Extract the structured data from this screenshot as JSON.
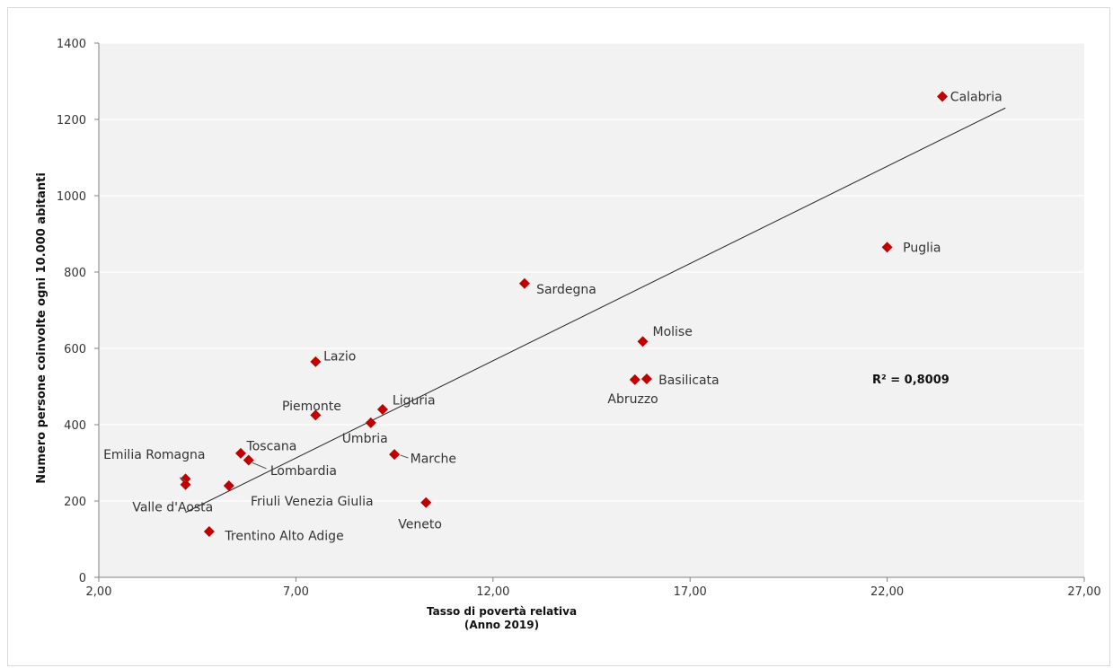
{
  "chart_data": {
    "type": "scatter",
    "xlabel_line1": "Tasso di povertà relativa",
    "xlabel_line2": "(Anno 2019)",
    "ylabel": "Numero persone coinvolte ogni 10.000 abitanti",
    "xlim": [
      2,
      27
    ],
    "ylim": [
      0,
      1400
    ],
    "x_ticks": [
      "2,00",
      "7,00",
      "12,00",
      "17,00",
      "22,00",
      "27,00"
    ],
    "x_tick_values": [
      2,
      7,
      12,
      17,
      22,
      27
    ],
    "y_ticks": [
      "0",
      "200",
      "400",
      "600",
      "800",
      "1000",
      "1200",
      "1400"
    ],
    "y_tick_values": [
      0,
      200,
      400,
      600,
      800,
      1000,
      1200,
      1400
    ],
    "grid": "horizontal",
    "marker_color": "#c00000",
    "plot_bg": "#f2f2f2",
    "trendline": {
      "x": [
        4.2,
        25.0
      ],
      "y": [
        170,
        1230
      ]
    },
    "r2_label": "R² = 0,8009",
    "r2_position": {
      "x": 22.6,
      "y": 520
    },
    "points": [
      {
        "name": "Calabria",
        "x": 23.4,
        "y": 1260,
        "lx": 23.6,
        "ly": 1260,
        "anchor": "start"
      },
      {
        "name": "Puglia",
        "x": 22.0,
        "y": 865,
        "lx": 22.4,
        "ly": 865,
        "anchor": "start"
      },
      {
        "name": "Sardegna",
        "x": 12.8,
        "y": 770,
        "lx": 13.1,
        "ly": 755,
        "anchor": "start"
      },
      {
        "name": "Molise",
        "x": 15.8,
        "y": 618,
        "lx": 16.05,
        "ly": 645,
        "anchor": "start"
      },
      {
        "name": "Basilicata",
        "x": 15.9,
        "y": 520,
        "lx": 16.2,
        "ly": 518,
        "anchor": "start"
      },
      {
        "name": "Abruzzo",
        "x": 15.6,
        "y": 518,
        "lx": 15.55,
        "ly": 468,
        "anchor": "middle"
      },
      {
        "name": "Lazio",
        "x": 7.5,
        "y": 565,
        "lx": 7.7,
        "ly": 580,
        "anchor": "start"
      },
      {
        "name": "Piemonte",
        "x": 7.5,
        "y": 425,
        "lx": 7.4,
        "ly": 450,
        "anchor": "middle"
      },
      {
        "name": "Liguria",
        "x": 9.2,
        "y": 440,
        "lx": 9.45,
        "ly": 465,
        "anchor": "start"
      },
      {
        "name": "Umbria",
        "x": 8.9,
        "y": 405,
        "lx": 8.75,
        "ly": 365,
        "anchor": "middle"
      },
      {
        "name": "Marche",
        "x": 9.5,
        "y": 322,
        "lx": 9.9,
        "ly": 312,
        "anchor": "start"
      },
      {
        "name": "Veneto",
        "x": 10.3,
        "y": 196,
        "lx": 10.15,
        "ly": 140,
        "anchor": "middle"
      },
      {
        "name": "Toscana",
        "x": 5.6,
        "y": 325,
        "lx": 5.75,
        "ly": 345,
        "anchor": "start"
      },
      {
        "name": "Lombardia",
        "x": 5.8,
        "y": 307,
        "lx": 6.35,
        "ly": 280,
        "anchor": "start"
      },
      {
        "name": "Emilia Romagna",
        "x": 4.2,
        "y": 258,
        "lx": 4.7,
        "ly": 322,
        "anchor": "end"
      },
      {
        "name": "Valle d'Aosta",
        "x": 4.2,
        "y": 243,
        "lx": 4.9,
        "ly": 185,
        "anchor": "end"
      },
      {
        "name": "Friuli Venezia Giulia",
        "x": 5.3,
        "y": 240,
        "lx": 5.85,
        "ly": 200,
        "anchor": "start"
      },
      {
        "name": "Trentino Alto Adige",
        "x": 4.8,
        "y": 120,
        "lx": 5.2,
        "ly": 110,
        "anchor": "start"
      }
    ]
  }
}
